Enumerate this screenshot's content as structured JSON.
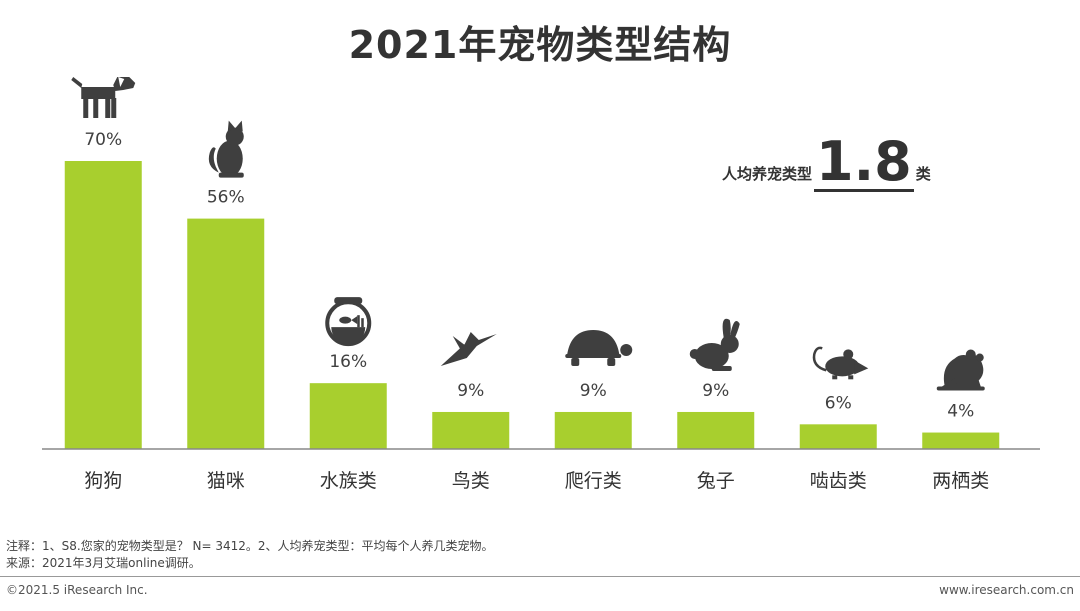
{
  "title": "2021年宠物类型结构",
  "chart_data": {
    "type": "bar",
    "title": "2021年宠物类型结构",
    "categories": [
      "狗狗",
      "猫咪",
      "水族类",
      "鸟类",
      "爬行类",
      "兔子",
      "啮齿类",
      "两栖类"
    ],
    "values": [
      70,
      56,
      16,
      9,
      9,
      9,
      6,
      4
    ],
    "value_labels": [
      "70%",
      "56%",
      "16%",
      "9%",
      "9%",
      "9%",
      "6%",
      "4%"
    ],
    "icons": [
      "dog-icon",
      "cat-icon",
      "fishbowl-icon",
      "bird-icon",
      "turtle-icon",
      "rabbit-icon",
      "mouse-icon",
      "frog-icon"
    ],
    "bar_color": "#a8cf2e",
    "icon_color": "#3f3f3f",
    "ylim": [
      0,
      70
    ],
    "grid": false
  },
  "average": {
    "label": "人均养宠类型",
    "value": "1.8",
    "unit": "类"
  },
  "notes": {
    "line1": "注释：1、S8.您家的宠物类型是？ N= 3412。2、人均养宠类型：平均每个人养几类宠物。",
    "line2": "来源：2021年3月艾瑞online调研。"
  },
  "footer": {
    "copyright": "©2021.5 iResearch Inc.",
    "site": "www.iresearch.com.cn"
  }
}
